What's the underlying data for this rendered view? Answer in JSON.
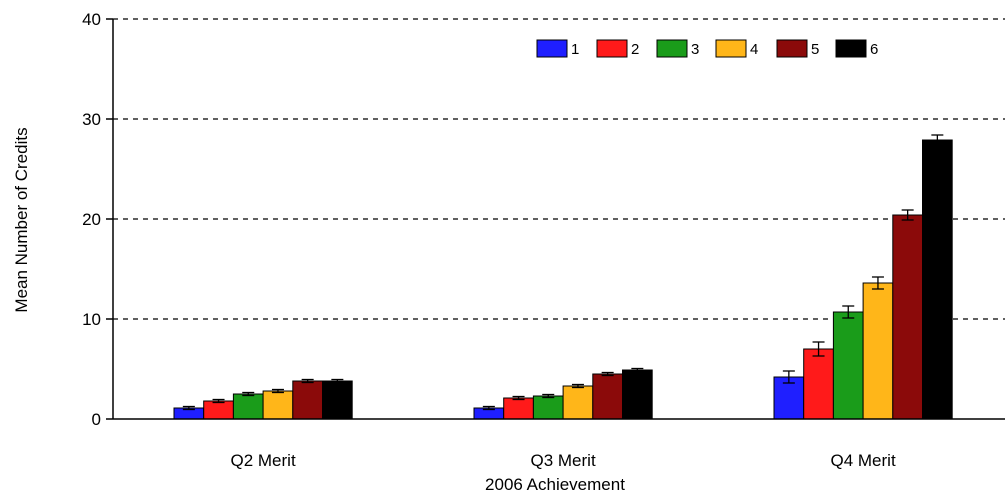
{
  "chart_data": {
    "type": "bar",
    "xlabel": "2006 Achievement",
    "ylabel": "Mean Number of Credits",
    "ylim": [
      0,
      40
    ],
    "yticks": [
      0,
      10,
      20,
      30,
      40
    ],
    "grid": "horizontal-dashed",
    "legend_position": "top-right",
    "categories": [
      "Q2 Merit",
      "Q3 Merit",
      "Q4 Merit"
    ],
    "series": [
      {
        "name": "1",
        "color": "#1f1fff",
        "values": [
          1.1,
          1.1,
          4.2
        ],
        "errors": [
          0.15,
          0.15,
          0.6
        ]
      },
      {
        "name": "2",
        "color": "#ff1a1a",
        "values": [
          1.8,
          2.1,
          7.0
        ],
        "errors": [
          0.15,
          0.15,
          0.7
        ]
      },
      {
        "name": "3",
        "color": "#1a9c1a",
        "values": [
          2.5,
          2.3,
          10.7
        ],
        "errors": [
          0.15,
          0.15,
          0.6
        ]
      },
      {
        "name": "4",
        "color": "#ffb619",
        "values": [
          2.8,
          3.3,
          13.6
        ],
        "errors": [
          0.15,
          0.15,
          0.6
        ]
      },
      {
        "name": "5",
        "color": "#8b0a0a",
        "values": [
          3.8,
          4.5,
          20.4
        ],
        "errors": [
          0.15,
          0.15,
          0.5
        ]
      },
      {
        "name": "6",
        "color": "#000000",
        "values": [
          3.8,
          4.9,
          27.9
        ],
        "errors": [
          0.15,
          0.15,
          0.5
        ]
      }
    ]
  }
}
